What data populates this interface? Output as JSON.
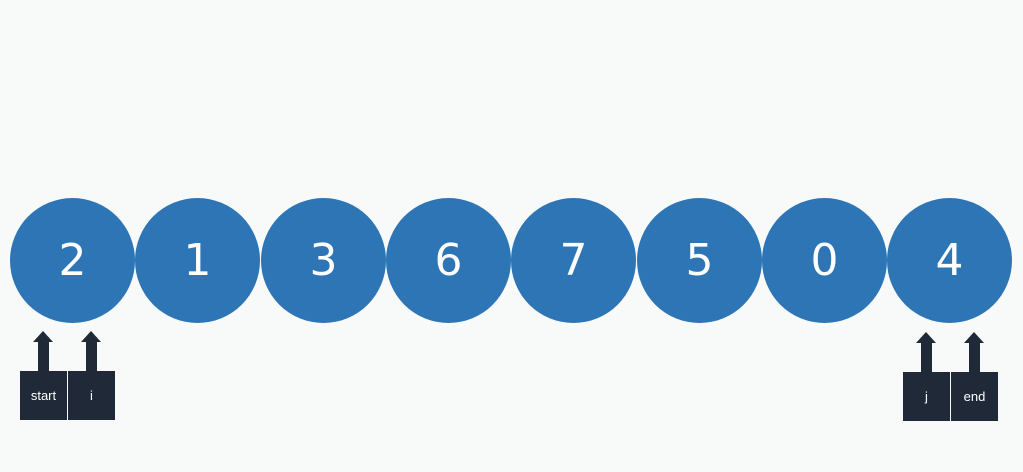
{
  "colors": {
    "node_fill": "#2e75b6",
    "pointer_fill": "#1f2937",
    "background": "#f8fafa"
  },
  "nodes": [
    "2",
    "1",
    "3",
    "6",
    "7",
    "5",
    "0",
    "4"
  ],
  "pointers": {
    "start": "start",
    "i": "i",
    "j": "j",
    "end": "end"
  }
}
